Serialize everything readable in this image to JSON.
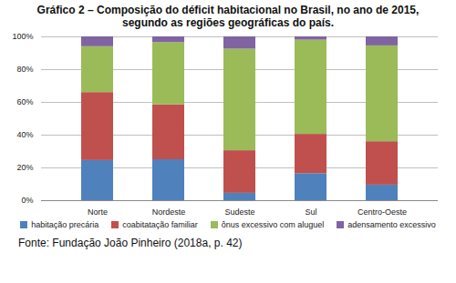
{
  "chart_data": {
    "type": "bar",
    "title": "Gráfico 2 – Composição do déficit habitacional no Brasil, no ano de 2015, segundo as regiões geográficas do país.",
    "source": "Fonte: Fundação João Pinheiro (2018a, p. 42)",
    "categories": [
      "Norte",
      "Nordeste",
      "Sudeste",
      "Sul",
      "Centro-Oeste"
    ],
    "series": [
      {
        "name": "habitação precária",
        "color": "#4f81bd",
        "values": [
          24.5,
          25,
          4.5,
          16.5,
          9.5
        ]
      },
      {
        "name": "coabitatação familiar",
        "color": "#c0504d",
        "values": [
          41.5,
          33.5,
          26,
          24,
          26.5
        ]
      },
      {
        "name": "ônus excessivo com aluguel",
        "color": "#9bbb59",
        "values": [
          28,
          38,
          62,
          57.5,
          58.5
        ]
      },
      {
        "name": "adensamento excessivo",
        "color": "#8064a2",
        "values": [
          6,
          3.5,
          7.5,
          2,
          5.5
        ]
      }
    ],
    "ylim": [
      0,
      100
    ],
    "yticks": [
      {
        "value": 0,
        "label": "0%"
      },
      {
        "value": 20,
        "label": "20%"
      },
      {
        "value": 40,
        "label": "40%"
      },
      {
        "value": 60,
        "label": "60%"
      },
      {
        "value": 80,
        "label": "80%"
      },
      {
        "value": 100,
        "label": "100%"
      }
    ],
    "stacked": true,
    "grid": true,
    "legend": "bottom"
  }
}
